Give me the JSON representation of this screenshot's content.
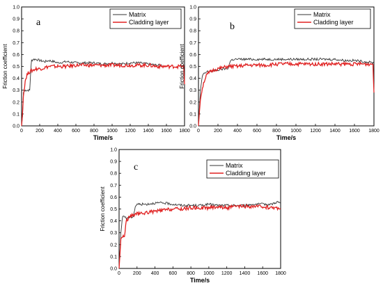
{
  "chart_data": [
    {
      "type": "line",
      "panel_label": "a",
      "xlabel": "Time/s",
      "ylabel": "Friction coefficient",
      "xlim": [
        0,
        1800
      ],
      "ylim": [
        0,
        1.0
      ],
      "xticks": [
        "0",
        "200",
        "400",
        "600",
        "800",
        "1000",
        "1200",
        "1400",
        "1600",
        "1800"
      ],
      "yticks": [
        "0.0",
        "0.1",
        "0.2",
        "0.3",
        "0.4",
        "0.5",
        "0.6",
        "0.7",
        "0.8",
        "0.9",
        "1.0"
      ],
      "legend_position": "top-right",
      "series": [
        {
          "name": "Matrix",
          "color": "#333333",
          "x": [
            0,
            10,
            20,
            40,
            60,
            90,
            100,
            110,
            130,
            160,
            200,
            260,
            300,
            360,
            400,
            500,
            600,
            700,
            800,
            900,
            1000,
            1100,
            1200,
            1300,
            1400,
            1500,
            1550
          ],
          "y": [
            0.0,
            0.08,
            0.28,
            0.3,
            0.3,
            0.3,
            0.45,
            0.55,
            0.56,
            0.56,
            0.55,
            0.54,
            0.55,
            0.54,
            0.53,
            0.54,
            0.53,
            0.53,
            0.53,
            0.52,
            0.53,
            0.52,
            0.53,
            0.53,
            0.52,
            0.51,
            0.51
          ]
        },
        {
          "name": "Cladding layer",
          "color": "#e02020",
          "x": [
            0,
            10,
            20,
            40,
            60,
            80,
            100,
            130,
            160,
            200,
            260,
            300,
            400,
            500,
            600,
            700,
            800,
            900,
            1000,
            1100,
            1200,
            1300,
            1400,
            1500,
            1600,
            1700,
            1790,
            1800
          ],
          "y": [
            0.0,
            0.1,
            0.25,
            0.38,
            0.43,
            0.45,
            0.46,
            0.47,
            0.48,
            0.48,
            0.49,
            0.5,
            0.5,
            0.5,
            0.51,
            0.51,
            0.51,
            0.51,
            0.51,
            0.51,
            0.51,
            0.51,
            0.51,
            0.5,
            0.5,
            0.5,
            0.5,
            0.35
          ]
        }
      ]
    },
    {
      "type": "line",
      "panel_label": "b",
      "xlabel": "Time/s",
      "ylabel": "Friction coefficient",
      "xlim": [
        0,
        1800
      ],
      "ylim": [
        0,
        1.0
      ],
      "xticks": [
        "0",
        "200",
        "400",
        "600",
        "800",
        "1000",
        "1200",
        "1400",
        "1600",
        "1800"
      ],
      "yticks": [
        "0.0",
        "0.1",
        "0.2",
        "0.3",
        "0.4",
        "0.5",
        "0.6",
        "0.7",
        "0.8",
        "0.9",
        "1.0"
      ],
      "legend_position": "top-right",
      "series": [
        {
          "name": "Matrix",
          "color": "#333333",
          "x": [
            0,
            10,
            20,
            40,
            60,
            80,
            100,
            150,
            200,
            260,
            300,
            330,
            360,
            400,
            500,
            600,
            700,
            800,
            900,
            1000,
            1100,
            1200,
            1300,
            1400,
            1500,
            1600,
            1700,
            1800
          ],
          "y": [
            0.0,
            0.15,
            0.3,
            0.42,
            0.44,
            0.45,
            0.46,
            0.46,
            0.47,
            0.48,
            0.48,
            0.55,
            0.56,
            0.56,
            0.56,
            0.56,
            0.56,
            0.56,
            0.56,
            0.56,
            0.56,
            0.56,
            0.56,
            0.56,
            0.55,
            0.55,
            0.54,
            0.53
          ]
        },
        {
          "name": "Cladding layer",
          "color": "#e02020",
          "x": [
            0,
            10,
            20,
            40,
            60,
            80,
            100,
            130,
            160,
            200,
            260,
            300,
            400,
            500,
            600,
            700,
            800,
            900,
            1000,
            1100,
            1200,
            1300,
            1400,
            1500,
            1600,
            1700,
            1790,
            1800
          ],
          "y": [
            0.0,
            0.12,
            0.22,
            0.32,
            0.38,
            0.42,
            0.44,
            0.46,
            0.47,
            0.48,
            0.49,
            0.5,
            0.5,
            0.51,
            0.51,
            0.51,
            0.52,
            0.52,
            0.52,
            0.52,
            0.52,
            0.52,
            0.52,
            0.52,
            0.52,
            0.52,
            0.52,
            0.28
          ]
        }
      ]
    },
    {
      "type": "line",
      "panel_label": "c",
      "xlabel": "Time/s",
      "ylabel": "Friction coefficient",
      "xlim": [
        0,
        1800
      ],
      "ylim": [
        0,
        1.0
      ],
      "xticks": [
        "0",
        "200",
        "400",
        "600",
        "800",
        "1000",
        "1200",
        "1400",
        "1600",
        "1800"
      ],
      "yticks": [
        "0.0",
        "0.1",
        "0.2",
        "0.3",
        "0.4",
        "0.5",
        "0.6",
        "0.7",
        "0.8",
        "0.9",
        "1.0"
      ],
      "legend_position": "top-right",
      "series": [
        {
          "name": "Matrix",
          "color": "#333333",
          "x": [
            0,
            10,
            20,
            40,
            60,
            80,
            100,
            130,
            160,
            180,
            200,
            300,
            400,
            500,
            600,
            700,
            800,
            900,
            1000,
            1100,
            1200,
            1300,
            1400,
            1500,
            1600,
            1700,
            1760,
            1800
          ],
          "y": [
            0.0,
            0.15,
            0.3,
            0.44,
            0.44,
            0.42,
            0.43,
            0.43,
            0.44,
            0.52,
            0.54,
            0.54,
            0.55,
            0.55,
            0.54,
            0.53,
            0.53,
            0.53,
            0.54,
            0.53,
            0.53,
            0.53,
            0.53,
            0.54,
            0.54,
            0.54,
            0.56,
            0.55
          ]
        },
        {
          "name": "Cladding layer",
          "color": "#e02020",
          "x": [
            0,
            10,
            20,
            40,
            60,
            80,
            100,
            130,
            160,
            200,
            260,
            300,
            400,
            500,
            600,
            700,
            800,
            900,
            1000,
            1100,
            1200,
            1300,
            1400,
            1500,
            1600,
            1700,
            1790,
            1800
          ],
          "y": [
            0.0,
            0.12,
            0.25,
            0.27,
            0.27,
            0.4,
            0.42,
            0.44,
            0.45,
            0.46,
            0.46,
            0.47,
            0.48,
            0.49,
            0.5,
            0.5,
            0.51,
            0.51,
            0.51,
            0.52,
            0.51,
            0.52,
            0.52,
            0.52,
            0.52,
            0.51,
            0.51,
            0.5
          ]
        }
      ]
    }
  ]
}
